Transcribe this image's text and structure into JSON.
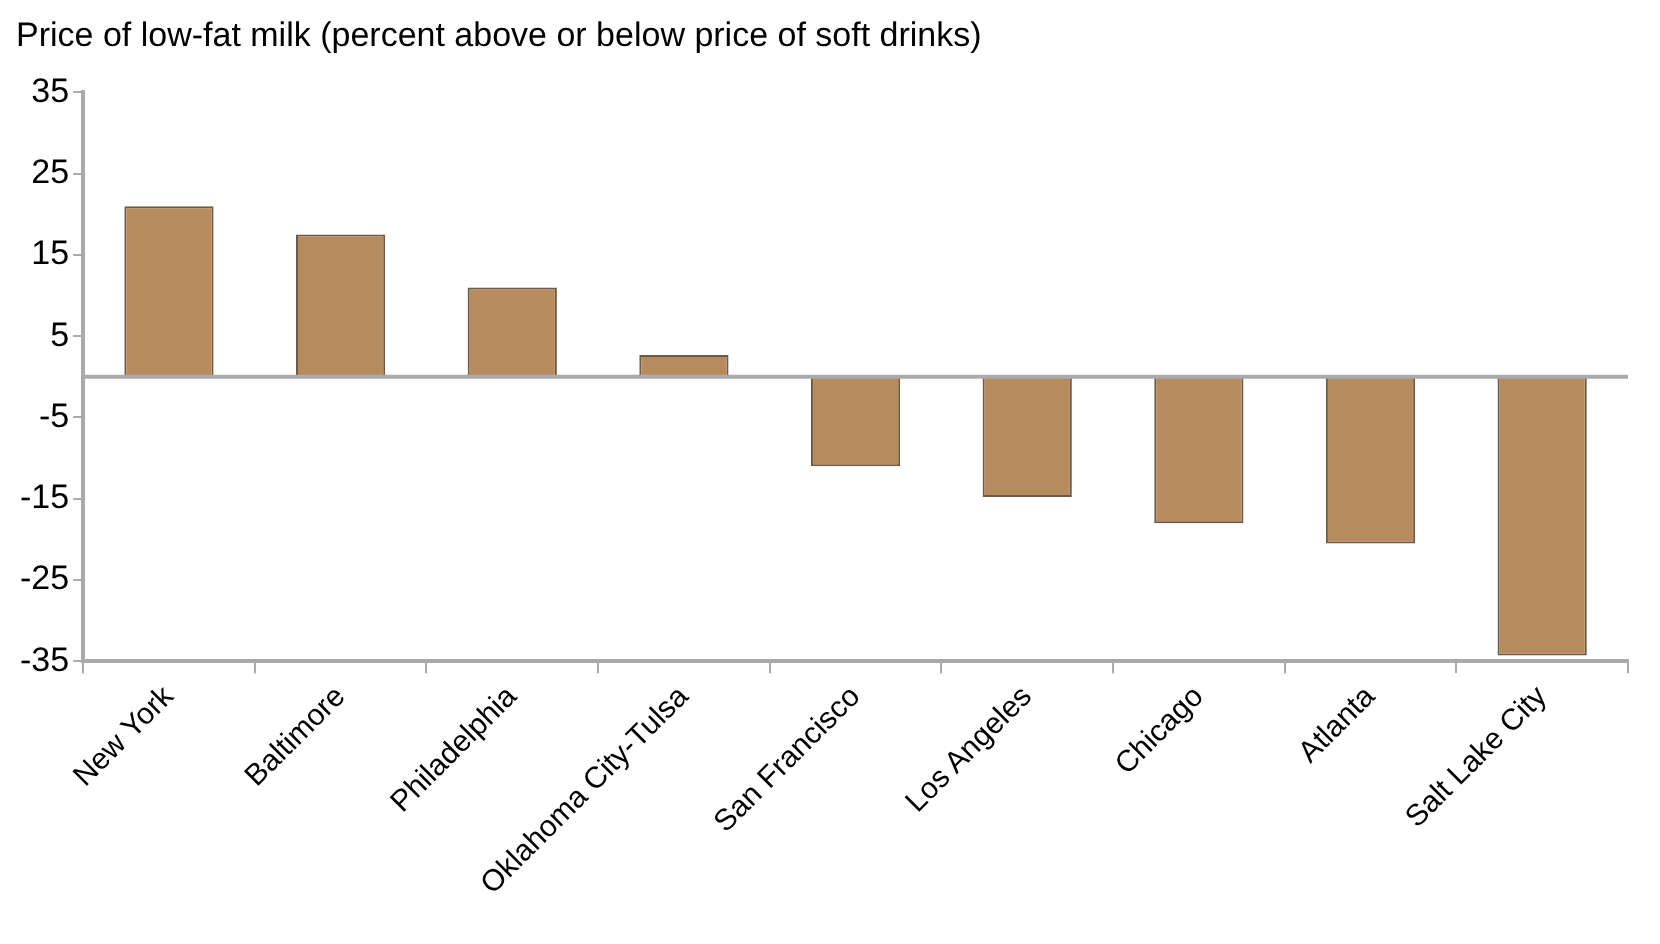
{
  "chart_data": {
    "type": "bar",
    "title": "Price of low-fat milk (percent above or below price of soft drinks)",
    "categories": [
      "New York",
      "Baltimore",
      "Philadelphia",
      "Oklahoma City-Tulsa",
      "San Francisco",
      "Los Angeles",
      "Chicago",
      "Atlanta",
      "Salt Lake City"
    ],
    "values": [
      21,
      17.5,
      11,
      2.7,
      -11,
      -14.8,
      -18,
      -20.5,
      -34.3
    ],
    "color": "#b68c5f",
    "ylim": [
      -35,
      35
    ],
    "yticks": [
      -35,
      -25,
      -15,
      -5,
      5,
      15,
      25,
      35
    ],
    "ref_lines": [
      {
        "axis": "y",
        "value": 0,
        "color": "#aaaaaa"
      }
    ],
    "grid": false,
    "legend": false
  }
}
